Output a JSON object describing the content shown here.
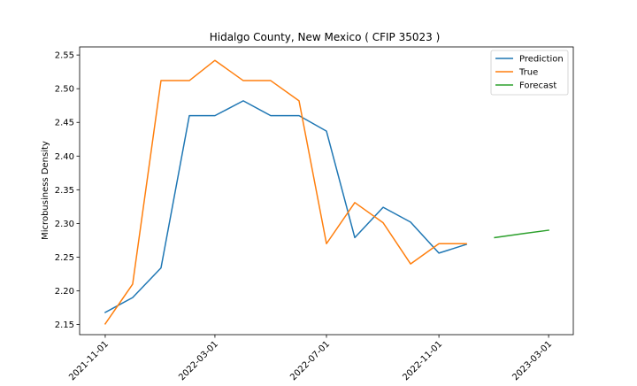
{
  "chart_data": {
    "type": "line",
    "title": "Hidalgo County, New Mexico ( CFIP 35023 )",
    "xlabel": "",
    "ylabel": "Microbusiness Density",
    "x_ticks": [
      "2021-11-01",
      "2022-03-01",
      "2022-07-01",
      "2022-11-01",
      "2023-03-01"
    ],
    "y_ticks": [
      "2.15",
      "2.20",
      "2.25",
      "2.30",
      "2.35",
      "2.40",
      "2.45",
      "2.50",
      "2.55"
    ],
    "xlim": [
      "2021-10-04",
      "2023-03-28"
    ],
    "ylim": [
      2.135,
      2.562
    ],
    "grid": false,
    "legend_position": "top-right",
    "series": [
      {
        "name": "Prediction",
        "color": "#1f77b4",
        "points": [
          [
            "2021-11-01",
            2.168
          ],
          [
            "2021-12-01",
            2.19
          ],
          [
            "2022-01-01",
            2.234
          ],
          [
            "2022-02-01",
            2.46
          ],
          [
            "2022-03-01",
            2.46
          ],
          [
            "2022-04-01",
            2.482
          ],
          [
            "2022-05-01",
            2.46
          ],
          [
            "2022-06-01",
            2.46
          ],
          [
            "2022-07-01",
            2.437
          ],
          [
            "2022-08-01",
            2.279
          ],
          [
            "2022-09-01",
            2.324
          ],
          [
            "2022-10-01",
            2.302
          ],
          [
            "2022-11-01",
            2.256
          ],
          [
            "2022-12-01",
            2.269
          ]
        ]
      },
      {
        "name": "True",
        "color": "#ff7f0e",
        "points": [
          [
            "2021-11-01",
            2.151
          ],
          [
            "2021-12-01",
            2.21
          ],
          [
            "2022-01-01",
            2.512
          ],
          [
            "2022-02-01",
            2.512
          ],
          [
            "2022-03-01",
            2.542
          ],
          [
            "2022-04-01",
            2.512
          ],
          [
            "2022-05-01",
            2.512
          ],
          [
            "2022-06-01",
            2.482
          ],
          [
            "2022-07-01",
            2.27
          ],
          [
            "2022-08-01",
            2.331
          ],
          [
            "2022-09-01",
            2.301
          ],
          [
            "2022-10-01",
            2.24
          ],
          [
            "2022-11-01",
            2.27
          ],
          [
            "2022-12-01",
            2.27
          ]
        ]
      },
      {
        "name": "Forecast",
        "color": "#2ca02c",
        "points": [
          [
            "2023-01-01",
            2.279
          ],
          [
            "2023-02-01",
            2.285
          ],
          [
            "2023-03-01",
            2.29
          ]
        ]
      }
    ]
  }
}
